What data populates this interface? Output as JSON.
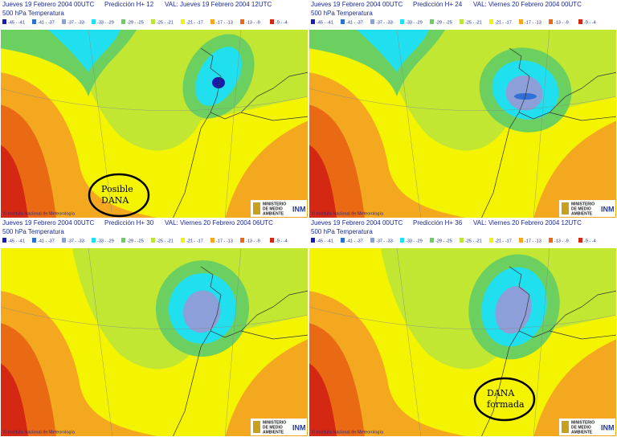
{
  "legend": [
    {
      "label": "-45 - -41",
      "color": "#1c1caa"
    },
    {
      "label": "-41 - -37",
      "color": "#2f70d8"
    },
    {
      "label": "-37 - -33",
      "color": "#8c9fd8"
    },
    {
      "label": "-33 - -29",
      "color": "#20e0f0"
    },
    {
      "label": "-29 - -25",
      "color": "#6cd060"
    },
    {
      "label": "-25 - -21",
      "color": "#b8e43c"
    },
    {
      "label": "-21 - -17",
      "color": "#f4f400"
    },
    {
      "label": "-17 - -13",
      "color": "#f4a820"
    },
    {
      "label": "-13 - -9",
      "color": "#ea6a14"
    },
    {
      "label": "-9 - -4",
      "color": "#d42812"
    }
  ],
  "subtitle": "500 hPa Temperatura",
  "credit": "© Instituto Nacional de Meteorología",
  "ministry": [
    "MINISTERIO",
    "DE MEDIO",
    "AMBIENTE"
  ],
  "agency": "INM",
  "panels": [
    {
      "run": "Jueves 19 Febrero 2004 00UTC",
      "forecast": "Predicción H+ 12",
      "valid": "VAL: Jueves 19 Febrero 2004 12UTC",
      "annotation": [
        "Posible",
        "DANA"
      ]
    },
    {
      "run": "Jueves 19 Febrero 2004 00UTC",
      "forecast": "Predicción H+ 24",
      "valid": "VAL: Viernes 20 Febrero 2004 00UTC"
    },
    {
      "run": "Jueves 19 Febrero 2004 00UTC",
      "forecast": "Predicción H+ 30",
      "valid": "VAL: Viernes 20 Febrero 2004 06UTC"
    },
    {
      "run": "Jueves 19 Febrero 2004 00UTC",
      "forecast": "Predicción H+ 36",
      "valid": "VAL: Viernes 20 Febrero 2004 12UTC",
      "annotation": [
        "DANA",
        "formada"
      ]
    }
  ]
}
